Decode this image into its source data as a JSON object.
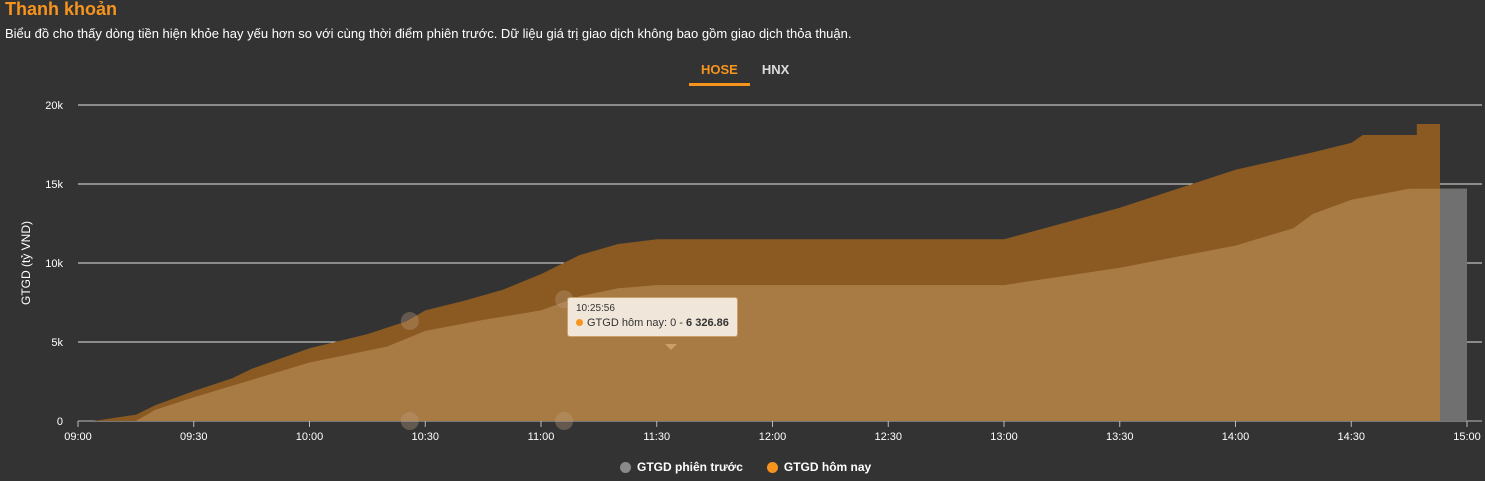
{
  "header": {
    "title": "Thanh khoản",
    "subtitle": "Biểu đồ cho thấy dòng tiền hiện khỏe hay yếu hơn so với cùng thời điểm phiên trước. Dữ liệu giá trị giao dịch không bao gồm giao dịch thỏa thuận."
  },
  "tabs": [
    {
      "label": "HOSE",
      "active": true
    },
    {
      "label": "HNX",
      "active": false
    }
  ],
  "tooltip": {
    "time": "10:25:56",
    "label": "GTGD hôm nay: 0 - ",
    "value": "6 326.86"
  },
  "colors": {
    "background": "#333333",
    "previous_area": "#8b5a23",
    "today_area": "#a87a44",
    "previous_tail": "#707070",
    "accent": "#f7941d"
  },
  "chart_data": {
    "type": "area",
    "ylabel": "GTGD (tỷ VND)",
    "xlabel": "",
    "ylim": [
      0,
      20000
    ],
    "y_ticks": [
      "0",
      "5k",
      "10k",
      "15k",
      "20k"
    ],
    "x_ticks": [
      "09:00",
      "09:30",
      "10:00",
      "10:30",
      "11:00",
      "11:30",
      "12:00",
      "12:30",
      "13:00",
      "13:30",
      "14:00",
      "14:30",
      "15:00"
    ],
    "grid": true,
    "legend_position": "bottom",
    "series": [
      {
        "name": "GTGD phiên trước",
        "color": "#8b5a23",
        "points": [
          [
            "09:04",
            0
          ],
          [
            "09:15",
            400
          ],
          [
            "09:20",
            1000
          ],
          [
            "09:30",
            1900
          ],
          [
            "09:40",
            2700
          ],
          [
            "09:45",
            3300
          ],
          [
            "10:00",
            4600
          ],
          [
            "10:15",
            5500
          ],
          [
            "10:25",
            6300
          ],
          [
            "10:30",
            7000
          ],
          [
            "10:40",
            7600
          ],
          [
            "10:50",
            8300
          ],
          [
            "11:00",
            9300
          ],
          [
            "11:10",
            10500
          ],
          [
            "11:20",
            11200
          ],
          [
            "11:30",
            11500
          ],
          [
            "13:00",
            11500
          ],
          [
            "13:30",
            13500
          ],
          [
            "14:00",
            15900
          ],
          [
            "14:20",
            17000
          ],
          [
            "14:30",
            17600
          ],
          [
            "14:33",
            18100
          ],
          [
            "14:47",
            18100
          ],
          [
            "14:47",
            18800
          ],
          [
            "14:53",
            18800
          ]
        ]
      },
      {
        "name": "GTGD hôm nay",
        "color": "#a87a44",
        "points": [
          [
            "09:15",
            0
          ],
          [
            "09:20",
            700
          ],
          [
            "09:30",
            1500
          ],
          [
            "09:45",
            2600
          ],
          [
            "10:00",
            3700
          ],
          [
            "10:20",
            4700
          ],
          [
            "10:30",
            5700
          ],
          [
            "10:45",
            6400
          ],
          [
            "11:00",
            7000
          ],
          [
            "11:10",
            7900
          ],
          [
            "11:20",
            8400
          ],
          [
            "11:30",
            8600
          ],
          [
            "13:00",
            8600
          ],
          [
            "13:30",
            9700
          ],
          [
            "14:00",
            11100
          ],
          [
            "14:15",
            12200
          ],
          [
            "14:20",
            13100
          ],
          [
            "14:30",
            14000
          ],
          [
            "14:45",
            14700
          ],
          [
            "15:00",
            14700
          ]
        ]
      }
    ],
    "previous_tail": {
      "from": "14:53",
      "to": "15:00",
      "value": 14700
    },
    "markers": [
      {
        "x": "10:26",
        "y": 6326.86
      },
      {
        "x": "10:26",
        "y": 0
      },
      {
        "x": "11:06",
        "y": 7700
      },
      {
        "x": "11:06",
        "y": 0
      }
    ]
  },
  "legend": [
    {
      "label": "GTGD phiên trước",
      "color": "#8a8a8a"
    },
    {
      "label": "GTGD hôm nay",
      "color": "#f7941d"
    }
  ]
}
